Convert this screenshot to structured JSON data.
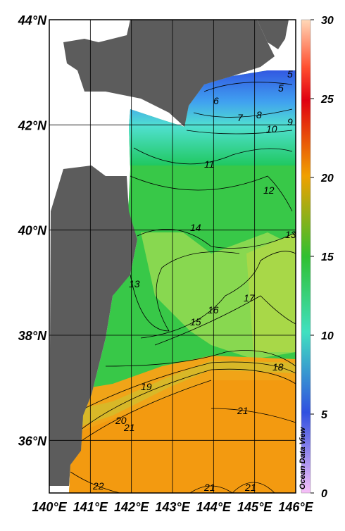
{
  "map": {
    "xlim": [
      140,
      146
    ],
    "ylim": [
      35,
      44
    ],
    "lon_ticks": [
      {
        "value": 140,
        "label": "140°E"
      },
      {
        "value": 141,
        "label": "141°E"
      },
      {
        "value": 142,
        "label": "142°E"
      },
      {
        "value": 143,
        "label": "143°E"
      },
      {
        "value": 144,
        "label": "144°E"
      },
      {
        "value": 145,
        "label": "145°E"
      },
      {
        "value": 146,
        "label": "146°E"
      }
    ],
    "lat_ticks": [
      {
        "value": 36,
        "label": "36°N"
      },
      {
        "value": 38,
        "label": "38°N"
      },
      {
        "value": 40,
        "label": "40°N"
      },
      {
        "value": 42,
        "label": "42°N"
      },
      {
        "value": 44,
        "label": "44°N"
      }
    ],
    "contour_labels": [
      5,
      5,
      6,
      7,
      8,
      9,
      10,
      11,
      12,
      13,
      14,
      13,
      15,
      16,
      17,
      18,
      19,
      20,
      21,
      21,
      22,
      21,
      21
    ]
  },
  "colorbar": {
    "lim": [
      0,
      30
    ],
    "ticks": [
      0,
      5,
      10,
      15,
      20,
      25,
      30
    ]
  },
  "watermark": "Ocean Data View"
}
